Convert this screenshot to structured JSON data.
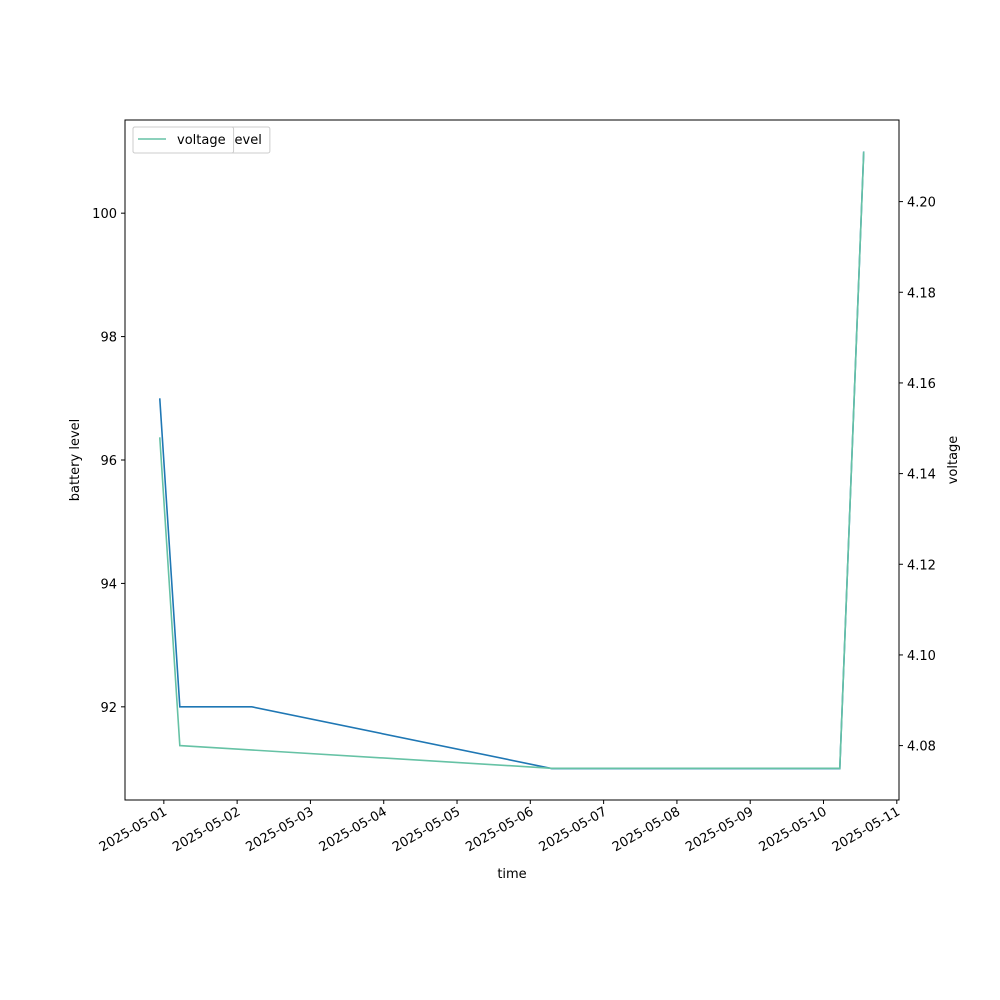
{
  "chart_data": {
    "type": "line",
    "xlabel": "time",
    "ylabel": "battery level",
    "y2label": "voltage",
    "xlim": [
      "2025-04-30T11:17",
      "2025-05-11T00:43"
    ],
    "xticks": [
      "2025-05-01",
      "2025-05-02",
      "2025-05-03",
      "2025-05-04",
      "2025-05-05",
      "2025-05-06",
      "2025-05-07",
      "2025-05-08",
      "2025-05-09",
      "2025-05-10",
      "2025-05-11"
    ],
    "ylim": [
      90.49,
      101.51
    ],
    "yticks": [
      92,
      94,
      96,
      98,
      100
    ],
    "y2lim": [
      4.068,
      4.218
    ],
    "y2ticks": [
      4.08,
      {
        "value": 4.1,
        "label": "4.10"
      },
      4.12,
      4.14,
      4.16,
      4.18,
      {
        "value": 4.2,
        "label": "4.20"
      }
    ],
    "series": [
      {
        "name": "battery_level",
        "color": "#1f77b4",
        "x": [
          "2025-04-30T22:40",
          "2025-05-01T05:14",
          "2025-05-02T04:48",
          "2025-05-06T07:00",
          "2025-05-10T05:20",
          "2025-05-10T13:10"
        ],
        "values": [
          97,
          92,
          92,
          91,
          91,
          101
        ]
      },
      {
        "name": "voltage",
        "color": "#66c2a5",
        "axis": "y2",
        "x": [
          "2025-04-30T22:40",
          "2025-05-01T05:14",
          "2025-05-06T07:00",
          "2025-05-10T05:20",
          "2025-05-10T13:10"
        ],
        "values": [
          4.148,
          4.08,
          4.075,
          4.075,
          4.211
        ]
      }
    ]
  }
}
